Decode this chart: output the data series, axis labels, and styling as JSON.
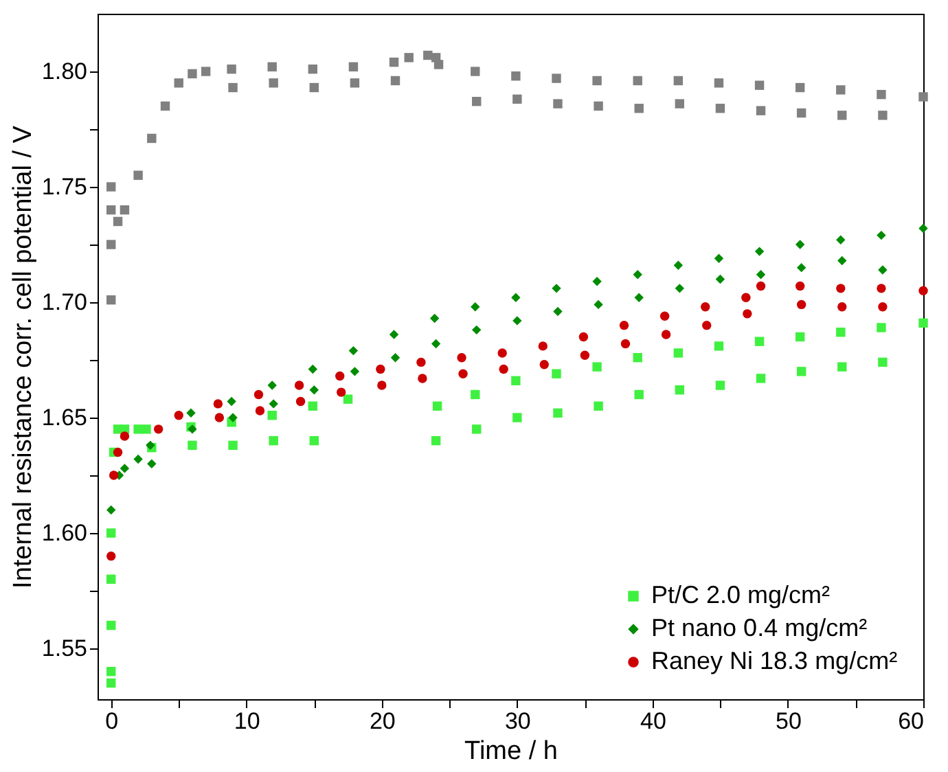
{
  "chart_data": {
    "type": "scatter",
    "xlabel": "Time / h",
    "ylabel": "Internal resistance corr. cell potential / V",
    "xlim": [
      -1,
      60
    ],
    "ylim": [
      1.528,
      1.825
    ],
    "xticks": [
      0,
      {
        "value": 5,
        "label": null
      },
      10,
      {
        "value": 15,
        "label": null
      },
      20,
      {
        "value": 25,
        "label": null
      },
      30,
      {
        "value": 35,
        "label": null
      },
      40,
      {
        "value": 45,
        "label": null
      },
      50,
      {
        "value": 55,
        "label": null
      },
      60
    ],
    "yticks": [
      {
        "value": 1.55,
        "label": "1.55"
      },
      {
        "value": 1.575,
        "label": null
      },
      {
        "value": 1.6,
        "label": "1.60"
      },
      {
        "value": 1.625,
        "label": null
      },
      {
        "value": 1.65,
        "label": "1.65"
      },
      {
        "value": 1.675,
        "label": null
      },
      {
        "value": 1.7,
        "label": "1.70"
      },
      {
        "value": 1.725,
        "label": null
      },
      {
        "value": 1.75,
        "label": "1.75"
      },
      {
        "value": 1.775,
        "label": null
      },
      {
        "value": 1.8,
        "label": "1.80"
      }
    ],
    "legend": "bottom right",
    "grid": false,
    "series": [
      {
        "color": "#808080",
        "marker": "square",
        "x": [
          0,
          0,
          0,
          0,
          0.5,
          1,
          2,
          3,
          4,
          5,
          6,
          7,
          8.9,
          9,
          11.9,
          12,
          14.9,
          15,
          17.9,
          18,
          20.9,
          21,
          22,
          23.4,
          24,
          24.2,
          26.9,
          27,
          29.9,
          30,
          32.9,
          33,
          35.9,
          36,
          38.9,
          39,
          41.9,
          42,
          44.9,
          45,
          47.9,
          48,
          50.9,
          51,
          53.9,
          54,
          56.9,
          57,
          60
        ],
        "values": [
          1.701,
          1.725,
          1.75,
          1.74,
          1.735,
          1.74,
          1.755,
          1.771,
          1.785,
          1.795,
          1.799,
          1.8,
          1.801,
          1.793,
          1.802,
          1.795,
          1.801,
          1.793,
          1.802,
          1.795,
          1.804,
          1.796,
          1.806,
          1.807,
          1.806,
          1.803,
          1.8,
          1.787,
          1.798,
          1.788,
          1.797,
          1.786,
          1.796,
          1.785,
          1.796,
          1.784,
          1.796,
          1.786,
          1.795,
          1.784,
          1.794,
          1.783,
          1.793,
          1.782,
          1.792,
          1.781,
          1.79,
          1.781,
          1.789
        ]
      },
      {
        "name": "Pt/C 2.0 mg/cm²",
        "color": "#40f040",
        "marker": "square",
        "x": [
          0,
          0,
          0,
          0,
          0,
          0.2,
          0.5,
          1,
          2,
          2.6,
          3,
          5.9,
          6,
          8.9,
          9,
          11.9,
          12,
          14.9,
          15,
          17.5,
          24,
          24.1,
          26.9,
          27,
          29.9,
          30,
          32.9,
          33,
          35.9,
          36,
          38.9,
          39,
          41.9,
          42,
          44.9,
          45,
          47.9,
          48,
          50.9,
          51,
          53.9,
          54,
          56.9,
          57,
          60
        ],
        "values": [
          1.535,
          1.54,
          1.56,
          1.58,
          1.6,
          1.635,
          1.645,
          1.645,
          1.645,
          1.645,
          1.637,
          1.646,
          1.638,
          1.648,
          1.638,
          1.651,
          1.64,
          1.655,
          1.64,
          1.658,
          1.64,
          1.655,
          1.66,
          1.645,
          1.666,
          1.65,
          1.669,
          1.652,
          1.672,
          1.655,
          1.676,
          1.66,
          1.678,
          1.662,
          1.681,
          1.664,
          1.683,
          1.667,
          1.685,
          1.67,
          1.687,
          1.672,
          1.689,
          1.674,
          1.691
        ]
      },
      {
        "name": "Pt nano 0.4 mg/cm²",
        "color": "#008c00",
        "marker": "diamond",
        "x": [
          0,
          0.6,
          1,
          2,
          2.9,
          3,
          5.9,
          6,
          8.9,
          9,
          11.9,
          12,
          14.9,
          15,
          17.9,
          18,
          20.9,
          21,
          23.9,
          24,
          26.9,
          27,
          29.9,
          30,
          32.9,
          33,
          35.9,
          36,
          38.9,
          39,
          41.9,
          42,
          44.9,
          45,
          47.9,
          48,
          50.9,
          51,
          53.9,
          54,
          56.9,
          57,
          60
        ],
        "values": [
          1.61,
          1.625,
          1.628,
          1.632,
          1.638,
          1.63,
          1.652,
          1.645,
          1.657,
          1.65,
          1.664,
          1.656,
          1.671,
          1.662,
          1.679,
          1.67,
          1.686,
          1.676,
          1.693,
          1.682,
          1.698,
          1.688,
          1.702,
          1.692,
          1.706,
          1.696,
          1.709,
          1.699,
          1.712,
          1.702,
          1.716,
          1.706,
          1.719,
          1.71,
          1.722,
          1.712,
          1.725,
          1.715,
          1.727,
          1.718,
          1.729,
          1.714,
          1.732
        ]
      },
      {
        "name": "Raney Ni 18.3 mg/cm²",
        "color": "#cc0000",
        "marker": "circle",
        "x": [
          0,
          0.2,
          0.5,
          1,
          3.5,
          5,
          7.9,
          8,
          10.9,
          11,
          13.9,
          14,
          16.9,
          17,
          19.9,
          20,
          22.9,
          23,
          25.9,
          26,
          28.9,
          29,
          31.9,
          32,
          34.9,
          35,
          37.9,
          38,
          40.9,
          41,
          43.9,
          44,
          46.9,
          47,
          48,
          50.9,
          51,
          53.9,
          54,
          56.9,
          57,
          60
        ],
        "values": [
          1.59,
          1.625,
          1.635,
          1.642,
          1.645,
          1.651,
          1.656,
          1.65,
          1.66,
          1.653,
          1.664,
          1.657,
          1.668,
          1.661,
          1.671,
          1.664,
          1.674,
          1.667,
          1.676,
          1.669,
          1.678,
          1.671,
          1.681,
          1.673,
          1.685,
          1.677,
          1.69,
          1.682,
          1.694,
          1.686,
          1.698,
          1.69,
          1.702,
          1.695,
          1.707,
          1.707,
          1.699,
          1.706,
          1.698,
          1.706,
          1.698,
          1.705
        ]
      }
    ]
  }
}
